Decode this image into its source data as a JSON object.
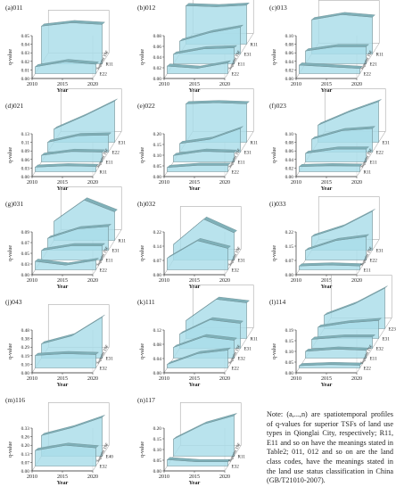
{
  "figure": {
    "note": "Note: (a,...,n) are spatiotemporal profiles of q-values for superior TSFs of land use types in Qionglai City, respectively; R11, E11 and so on have the meanings stated in Table2; 011, 012 and so on are the land class codes, have the meanings stated in the land use status classification in China (GB/T21010-2007).",
    "colors": {
      "fill": "#a9dde9",
      "stroke": "#6f8f96",
      "top": "#7fb0b8",
      "axis": "#333333"
    }
  },
  "chart_data": [
    {
      "type": "area",
      "panel_label": "(a)011",
      "x": [
        2010,
        2015,
        2020
      ],
      "xlabel": "Year",
      "ylabel": "q-value",
      "zlabel": "Superior TSF",
      "yticks": [
        "0.00",
        "0.01",
        "0.02",
        "0.03",
        "0.04",
        "0.05"
      ],
      "ylim": [
        0,
        0.05
      ],
      "series": [
        {
          "name": "E22",
          "values": [
            0.008,
            0.014,
            0.011
          ]
        },
        {
          "name": "R11",
          "values": [
            0.044,
            0.048,
            0.046
          ]
        }
      ]
    },
    {
      "type": "area",
      "panel_label": "(b)012",
      "x": [
        2010,
        2015,
        2020
      ],
      "xlabel": "Year",
      "ylabel": "q-value",
      "zlabel": "Superior TSF",
      "yticks": [
        "0.00",
        "0.02",
        "0.04",
        "0.06",
        "0.08"
      ],
      "ylim": [
        0,
        0.08
      ],
      "series": [
        {
          "name": "E22",
          "values": [
            0.014,
            0.01,
            0.02
          ]
        },
        {
          "name": "E11",
          "values": [
            0.018,
            0.028,
            0.03
          ]
        },
        {
          "name": "E31",
          "values": [
            0.024,
            0.04,
            0.05
          ]
        },
        {
          "name": "R11",
          "values": [
            0.072,
            0.07,
            0.073
          ]
        }
      ]
    },
    {
      "type": "area",
      "panel_label": "(c)013",
      "x": [
        2010,
        2015,
        2020
      ],
      "xlabel": "Year",
      "ylabel": "q-value",
      "zlabel": "Superior TSF",
      "yticks": [
        "0.00",
        "0.02",
        "0.04",
        "0.06",
        "0.08",
        "0.10"
      ],
      "ylim": [
        0,
        0.1
      ],
      "series": [
        {
          "name": "E22",
          "values": [
            0.02,
            0.016,
            0.012
          ]
        },
        {
          "name": "E21",
          "values": [
            0.03,
            0.04,
            0.04
          ]
        },
        {
          "name": "R11",
          "values": [
            0.08,
            0.092,
            0.086
          ]
        }
      ]
    },
    {
      "type": "area",
      "panel_label": "(d)021",
      "x": [
        2010,
        2015,
        2020
      ],
      "xlabel": "Year",
      "ylabel": "q-value",
      "zlabel": "Superior TSF",
      "yticks": [
        "0.00",
        "0.03",
        "0.06",
        "0.09",
        "0.11",
        "0.13"
      ],
      "ylim": [
        0,
        0.13
      ],
      "series": [
        {
          "name": "R11",
          "values": [
            0.014,
            0.018,
            0.016
          ]
        },
        {
          "name": "E11",
          "values": [
            0.02,
            0.032,
            0.03
          ]
        },
        {
          "name": "E22",
          "values": [
            0.03,
            0.05,
            0.052
          ]
        },
        {
          "name": "E31",
          "values": [
            0.04,
            0.08,
            0.125
          ]
        }
      ]
    },
    {
      "type": "area",
      "panel_label": "(e)022",
      "x": [
        2010,
        2015,
        2020
      ],
      "xlabel": "Year",
      "ylabel": "q-value",
      "zlabel": "Superior TSF",
      "yticks": [
        "0.00",
        "0.05",
        "0.10",
        "0.15",
        "0.20"
      ],
      "ylim": [
        0,
        0.2
      ],
      "series": [
        {
          "name": "E22",
          "values": [
            0.02,
            0.03,
            0.03
          ]
        },
        {
          "name": "E11",
          "values": [
            0.03,
            0.05,
            0.045
          ]
        },
        {
          "name": "E31",
          "values": [
            0.04,
            0.06,
            0.11
          ]
        },
        {
          "name": "R11",
          "values": [
            0.18,
            0.185,
            0.18
          ]
        }
      ]
    },
    {
      "type": "area",
      "panel_label": "(f)023",
      "x": [
        2010,
        2015,
        2020
      ],
      "xlabel": "Year",
      "ylabel": "q-value",
      "zlabel": "Superior TSF",
      "yticks": [
        "0.00",
        "0.02",
        "0.04",
        "0.06",
        "0.08",
        "0.10"
      ],
      "ylim": [
        0,
        0.1
      ],
      "series": [
        {
          "name": "R11",
          "values": [
            0.012,
            0.014,
            0.013
          ]
        },
        {
          "name": "E11",
          "values": [
            0.02,
            0.03,
            0.03
          ]
        },
        {
          "name": "E22",
          "values": [
            0.03,
            0.05,
            0.055
          ]
        },
        {
          "name": "E31",
          "values": [
            0.04,
            0.07,
            0.095
          ]
        }
      ]
    },
    {
      "type": "area",
      "panel_label": "(g)031",
      "x": [
        2010,
        2015,
        2020
      ],
      "xlabel": "Year",
      "ylabel": "q-value",
      "zlabel": "Superior TSF",
      "yticks": [
        "0.00",
        "0.03",
        "0.05",
        "0.07",
        "0.09"
      ],
      "ylim": [
        0,
        0.09
      ],
      "series": [
        {
          "name": "E22",
          "values": [
            0.018,
            0.01,
            0.02
          ]
        },
        {
          "name": "E11",
          "values": [
            0.02,
            0.03,
            0.03
          ]
        },
        {
          "name": "E31",
          "values": [
            0.025,
            0.045,
            0.05
          ]
        },
        {
          "name": "R11",
          "values": [
            0.04,
            0.085,
            0.06
          ]
        }
      ]
    },
    {
      "type": "area",
      "panel_label": "(h)032",
      "x": [
        2010,
        2015,
        2020
      ],
      "xlabel": "Year",
      "ylabel": "q-value",
      "zlabel": "Superior TSF",
      "yticks": [
        "0.00",
        "0.07",
        "0.14",
        "0.22"
      ],
      "ylim": [
        0,
        0.22
      ],
      "series": [
        {
          "name": "E32",
          "values": [
            0.06,
            0.15,
            0.11
          ]
        },
        {
          "name": "E31",
          "values": [
            0.08,
            0.21,
            0.14
          ]
        }
      ]
    },
    {
      "type": "area",
      "panel_label": "(i)033",
      "x": [
        2010,
        2015,
        2020
      ],
      "xlabel": "Year",
      "ylabel": "q-value",
      "zlabel": "Superior TSF",
      "yticks": [
        "0.00",
        "0.07",
        "0.15",
        "0.22"
      ],
      "ylim": [
        0,
        0.22
      ],
      "series": [
        {
          "name": "E11",
          "values": [
            0.02,
            0.025,
            0.02
          ]
        },
        {
          "name": "E22",
          "values": [
            0.05,
            0.1,
            0.12
          ]
        },
        {
          "name": "E31",
          "values": [
            0.07,
            0.12,
            0.2
          ]
        }
      ]
    },
    {
      "type": "area",
      "panel_label": "(j)043",
      "x": [
        2010,
        2015,
        2020
      ],
      "xlabel": "Year",
      "ylabel": "q-value",
      "zlabel": "Superior TSF",
      "yticks": [
        "0.00",
        "0.10",
        "0.19",
        "0.29",
        "0.38",
        "0.48"
      ],
      "ylim": [
        0,
        0.48
      ],
      "series": [
        {
          "name": "E32",
          "values": [
            0.14,
            0.16,
            0.15
          ]
        },
        {
          "name": "E31",
          "values": [
            0.16,
            0.25,
            0.46
          ]
        }
      ]
    },
    {
      "type": "area",
      "panel_label": "(k)111",
      "x": [
        2010,
        2015,
        2020
      ],
      "xlabel": "Year",
      "ylabel": "q-value",
      "zlabel": "Superior TSF",
      "yticks": [
        "0.00",
        "0.04",
        "0.08",
        "0.12"
      ],
      "ylim": [
        0,
        0.12
      ],
      "series": [
        {
          "name": "E22",
          "values": [
            0.01,
            0.04,
            0.05
          ]
        },
        {
          "name": "E32",
          "values": [
            0.03,
            0.06,
            0.05
          ]
        },
        {
          "name": "E31",
          "values": [
            0.04,
            0.08,
            0.07
          ]
        },
        {
          "name": "R11",
          "values": [
            0.05,
            0.11,
            0.1
          ]
        }
      ]
    },
    {
      "type": "area",
      "panel_label": "(l)114",
      "x": [
        2010,
        2015,
        2020
      ],
      "xlabel": "Year",
      "ylabel": "q-value",
      "zlabel": "Superior TSF",
      "yticks": [
        "0.00",
        "0.05",
        "0.10",
        "0.15",
        "0.19"
      ],
      "ylim": [
        0,
        0.19
      ],
      "series": [
        {
          "name": "E22",
          "values": [
            0.01,
            0.015,
            0.012
          ]
        },
        {
          "name": "E11",
          "values": [
            0.03,
            0.04,
            0.035
          ]
        },
        {
          "name": "E32",
          "values": [
            0.04,
            0.05,
            0.05
          ]
        },
        {
          "name": "E31",
          "values": [
            0.05,
            0.07,
            0.08
          ]
        },
        {
          "name": "E23",
          "values": [
            0.06,
            0.11,
            0.18
          ]
        }
      ]
    },
    {
      "type": "area",
      "panel_label": "(m)116",
      "x": [
        2010,
        2015,
        2020
      ],
      "xlabel": "Year",
      "ylabel": "q-value",
      "zlabel": "Superior TSF",
      "yticks": [
        "0.00",
        "0.07",
        "0.13",
        "0.20",
        "0.26",
        "0.33"
      ],
      "ylim": [
        0,
        0.33
      ],
      "series": [
        {
          "name": "E32",
          "values": [
            0.12,
            0.16,
            0.14
          ]
        },
        {
          "name": "E40",
          "values": [
            0.16,
            0.22,
            0.3
          ]
        }
      ]
    },
    {
      "type": "area",
      "panel_label": "(n)117",
      "x": [
        2010,
        2015,
        2020
      ],
      "xlabel": "Year",
      "ylabel": "q-value",
      "zlabel": "Superior TSF",
      "yticks": [
        "0.00",
        "0.05",
        "0.10",
        "0.15",
        "0.20"
      ],
      "ylim": [
        0,
        0.2
      ],
      "series": [
        {
          "name": "E32",
          "values": [
            0.03,
            0.02,
            0.02
          ]
        },
        {
          "name": "R11",
          "values": [
            0.08,
            0.15,
            0.19
          ]
        }
      ]
    }
  ]
}
